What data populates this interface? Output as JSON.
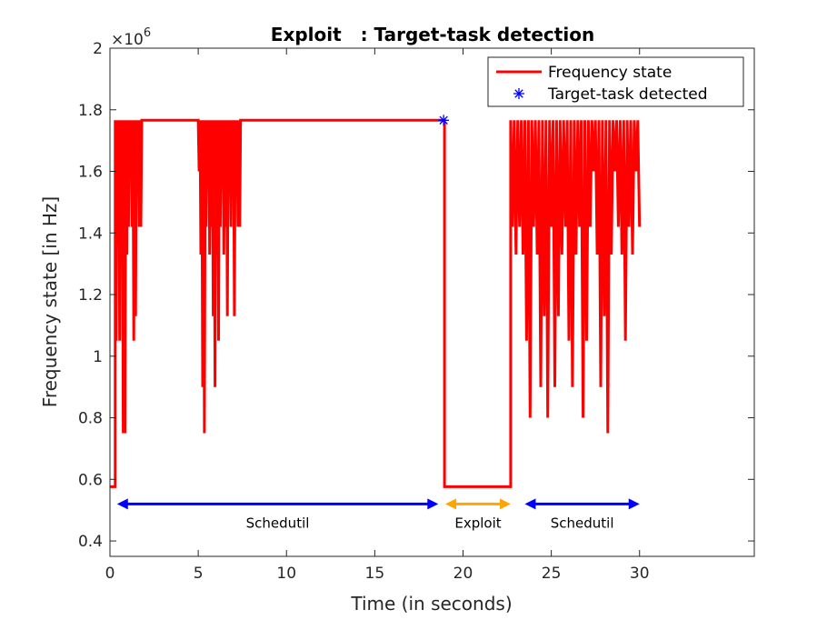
{
  "chart_data": {
    "type": "line",
    "title": "Exploit   : Target-task detection",
    "xlabel": "Time (in seconds)",
    "ylabel": "Frequency state [in Hz]",
    "y_multiplier": "×10",
    "y_exponent": "6",
    "xlim": [
      0,
      36.5
    ],
    "ylim": [
      0.35,
      2.0
    ],
    "xticks": [
      0,
      5,
      10,
      15,
      20,
      25,
      30
    ],
    "yticks": [
      0.4,
      0.6,
      0.8,
      1,
      1.2,
      1.4,
      1.6,
      1.8,
      2
    ],
    "ytick_labels": [
      "0.4",
      "0.6",
      "0.8",
      "1",
      "1.2",
      "1.4",
      "1.6",
      "1.8",
      "2"
    ],
    "legend_position": "top-right",
    "series": [
      {
        "name": "Frequency state",
        "color": "#ff0000",
        "style": "line",
        "x": [
          0.0,
          0.3,
          0.3,
          0.35,
          0.4,
          0.45,
          0.5,
          0.55,
          0.6,
          0.65,
          0.7,
          0.75,
          0.8,
          0.85,
          0.9,
          0.95,
          1.0,
          1.05,
          1.1,
          1.15,
          1.2,
          1.25,
          1.3,
          1.35,
          1.4,
          1.45,
          1.5,
          1.55,
          1.6,
          1.65,
          1.7,
          1.75,
          1.8,
          1.85,
          1.9,
          5.0,
          5.05,
          5.1,
          5.15,
          5.2,
          5.25,
          5.3,
          5.35,
          5.4,
          5.45,
          5.5,
          5.55,
          5.6,
          5.65,
          5.7,
          5.75,
          5.8,
          5.85,
          5.9,
          5.95,
          6.0,
          6.05,
          6.1,
          6.15,
          6.2,
          6.25,
          6.3,
          6.35,
          6.4,
          6.45,
          6.5,
          6.55,
          6.6,
          6.65,
          6.7,
          6.75,
          6.8,
          6.85,
          6.9,
          6.95,
          7.0,
          7.05,
          7.1,
          7.15,
          7.2,
          7.25,
          7.3,
          7.35,
          7.4,
          18.95,
          18.95,
          22.7,
          22.7,
          22.8,
          22.9,
          23.0,
          23.1,
          23.2,
          23.3,
          23.4,
          23.5,
          23.6,
          23.7,
          23.8,
          23.9,
          24.0,
          24.1,
          24.2,
          24.3,
          24.4,
          24.5,
          24.6,
          24.7,
          24.8,
          24.9,
          25.0,
          25.1,
          25.2,
          25.3,
          25.4,
          25.5,
          25.6,
          25.7,
          25.8,
          25.9,
          26.0,
          26.1,
          26.2,
          26.3,
          26.4,
          26.5,
          26.6,
          26.7,
          26.8,
          26.9,
          27.0,
          27.1,
          27.2,
          27.3,
          27.4,
          27.5,
          27.6,
          27.7,
          27.8,
          27.9,
          28.0,
          28.1,
          28.2,
          28.3,
          28.4,
          28.5,
          28.6,
          28.7,
          28.8,
          28.9,
          29.0,
          29.1,
          29.2,
          29.3,
          29.4,
          29.5,
          29.6,
          29.7,
          29.8,
          29.9,
          30.0
        ],
        "y": [
          0.576,
          0.576,
          1.766,
          1.05,
          1.766,
          1.42,
          1.766,
          1.05,
          1.766,
          1.42,
          1.766,
          0.75,
          1.766,
          0.75,
          1.766,
          1.33,
          1.766,
          1.42,
          1.766,
          1.6,
          1.766,
          1.42,
          1.766,
          1.05,
          1.766,
          1.13,
          1.766,
          1.6,
          1.766,
          1.42,
          1.766,
          1.42,
          1.766,
          1.766,
          1.766,
          1.766,
          1.6,
          1.766,
          1.33,
          1.766,
          0.9,
          1.766,
          0.75,
          1.766,
          1.42,
          1.766,
          1.6,
          1.766,
          1.33,
          1.766,
          1.42,
          1.766,
          1.13,
          1.766,
          0.9,
          1.766,
          1.33,
          1.766,
          1.05,
          1.766,
          1.42,
          1.766,
          1.6,
          1.766,
          1.33,
          1.766,
          1.42,
          1.766,
          1.13,
          1.766,
          1.6,
          1.766,
          1.42,
          1.766,
          1.6,
          1.766,
          1.13,
          1.766,
          1.6,
          1.766,
          1.42,
          1.766,
          1.42,
          1.766,
          1.766,
          0.576,
          0.576,
          1.766,
          1.42,
          1.766,
          1.33,
          1.766,
          1.42,
          1.766,
          1.33,
          1.766,
          1.05,
          1.766,
          0.8,
          1.766,
          1.42,
          1.766,
          1.33,
          1.766,
          0.9,
          1.766,
          1.13,
          1.766,
          0.8,
          1.766,
          1.42,
          1.766,
          0.9,
          1.766,
          1.13,
          1.766,
          1.33,
          1.766,
          1.42,
          1.766,
          1.05,
          1.766,
          0.9,
          1.766,
          1.33,
          1.766,
          1.42,
          1.766,
          0.8,
          1.766,
          1.05,
          1.766,
          1.42,
          1.766,
          1.6,
          1.766,
          1.33,
          1.766,
          0.9,
          1.766,
          1.13,
          1.766,
          0.75,
          1.766,
          1.33,
          1.766,
          1.6,
          1.766,
          1.42,
          1.766,
          1.33,
          1.766,
          1.05,
          1.766,
          1.42,
          1.766,
          1.33,
          1.766,
          1.6,
          1.766,
          1.42
        ]
      },
      {
        "name": "Target-task detected",
        "color": "#0000ff",
        "style": "marker",
        "marker": "asterisk",
        "x": [
          18.9
        ],
        "y": [
          1.766
        ]
      }
    ],
    "annotations": [
      {
        "label": "Schedutil",
        "x_start": 0.4,
        "x_end": 18.6,
        "y": 0.52,
        "color": "#0000ff"
      },
      {
        "label": "Exploit",
        "x_start": 19.0,
        "x_end": 22.7,
        "y": 0.52,
        "color": "#ffa500"
      },
      {
        "label": "Schedutil",
        "x_start": 23.5,
        "x_end": 30.0,
        "y": 0.52,
        "color": "#0000ff"
      }
    ]
  }
}
